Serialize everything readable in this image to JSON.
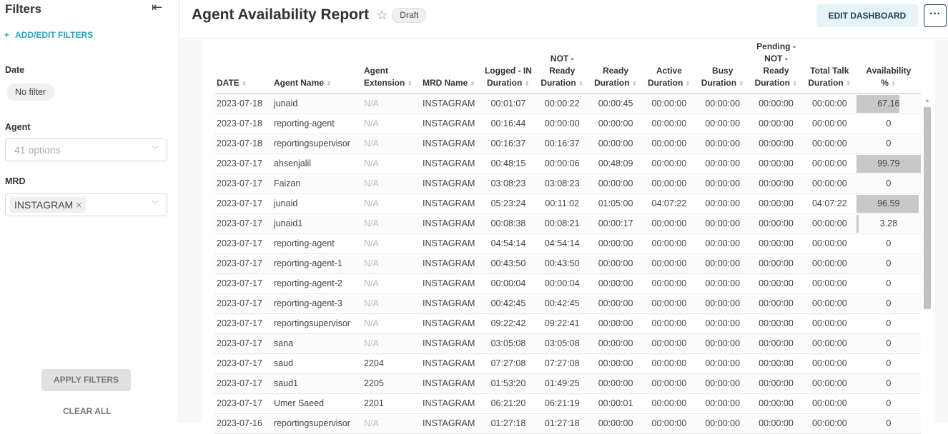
{
  "sidebar": {
    "title": "Filters",
    "add_filters": "ADD/EDIT FILTERS",
    "date_label": "Date",
    "date_value": "No filter",
    "agent_label": "Agent",
    "agent_placeholder": "41 options",
    "mrd_label": "MRD",
    "mrd_value": "INSTAGRAM",
    "apply": "APPLY FILTERS",
    "clear": "CLEAR ALL"
  },
  "header": {
    "title": "Agent Availability Report",
    "status": "Draft",
    "edit": "EDIT DASHBOARD",
    "more": "···"
  },
  "table": {
    "columns": [
      "DATE",
      "Agent Name",
      "Agent Extension",
      "MRD Name",
      "Logged - IN Duration",
      "NOT - Ready Duration",
      "Ready Duration",
      "Active Duration",
      "Busy Duration",
      "Pending - NOT - Ready Duration",
      "Total Talk Duration",
      "Availability %"
    ],
    "rows": [
      [
        "2023-07-18",
        "junaid",
        "N/A",
        "INSTAGRAM",
        "00:01:07",
        "00:00:22",
        "00:00:45",
        "00:00:00",
        "00:00:00",
        "00:00:00",
        "00:00:00",
        "67.16"
      ],
      [
        "2023-07-18",
        "reporting-agent",
        "N/A",
        "INSTAGRAM",
        "00:16:44",
        "00:00:00",
        "00:00:00",
        "00:00:00",
        "00:00:00",
        "00:00:00",
        "00:00:00",
        "0"
      ],
      [
        "2023-07-18",
        "reportingsupervisor",
        "N/A",
        "INSTAGRAM",
        "00:16:37",
        "00:16:37",
        "00:00:00",
        "00:00:00",
        "00:00:00",
        "00:00:00",
        "00:00:00",
        "0"
      ],
      [
        "2023-07-17",
        "ahsenjalil",
        "N/A",
        "INSTAGRAM",
        "00:48:15",
        "00:00:06",
        "00:48:09",
        "00:00:00",
        "00:00:00",
        "00:00:00",
        "00:00:00",
        "99.79"
      ],
      [
        "2023-07-17",
        "Faizan",
        "N/A",
        "INSTAGRAM",
        "03:08:23",
        "03:08:23",
        "00:00:00",
        "00:00:00",
        "00:00:00",
        "00:00:00",
        "00:00:00",
        "0"
      ],
      [
        "2023-07-17",
        "junaid",
        "N/A",
        "INSTAGRAM",
        "05:23:24",
        "00:11:02",
        "01:05:00",
        "04:07:22",
        "00:00:00",
        "00:00:00",
        "04:07:22",
        "96.59"
      ],
      [
        "2023-07-17",
        "junaid1",
        "N/A",
        "INSTAGRAM",
        "00:08:38",
        "00:08:21",
        "00:00:17",
        "00:00:00",
        "00:00:00",
        "00:00:00",
        "00:00:00",
        "3.28"
      ],
      [
        "2023-07-17",
        "reporting-agent",
        "N/A",
        "INSTAGRAM",
        "04:54:14",
        "04:54:14",
        "00:00:00",
        "00:00:00",
        "00:00:00",
        "00:00:00",
        "00:00:00",
        "0"
      ],
      [
        "2023-07-17",
        "reporting-agent-1",
        "N/A",
        "INSTAGRAM",
        "00:43:50",
        "00:43:50",
        "00:00:00",
        "00:00:00",
        "00:00:00",
        "00:00:00",
        "00:00:00",
        "0"
      ],
      [
        "2023-07-17",
        "reporting-agent-2",
        "N/A",
        "INSTAGRAM",
        "00:00:04",
        "00:00:04",
        "00:00:00",
        "00:00:00",
        "00:00:00",
        "00:00:00",
        "00:00:00",
        "0"
      ],
      [
        "2023-07-17",
        "reporting-agent-3",
        "N/A",
        "INSTAGRAM",
        "00:42:45",
        "00:42:45",
        "00:00:00",
        "00:00:00",
        "00:00:00",
        "00:00:00",
        "00:00:00",
        "0"
      ],
      [
        "2023-07-17",
        "reportingsupervisor",
        "N/A",
        "INSTAGRAM",
        "09:22:42",
        "09:22:41",
        "00:00:00",
        "00:00:00",
        "00:00:00",
        "00:00:00",
        "00:00:00",
        "0"
      ],
      [
        "2023-07-17",
        "sana",
        "N/A",
        "INSTAGRAM",
        "03:05:08",
        "03:05:08",
        "00:00:00",
        "00:00:00",
        "00:00:00",
        "00:00:00",
        "00:00:00",
        "0"
      ],
      [
        "2023-07-17",
        "saud",
        "2204",
        "INSTAGRAM",
        "07:27:08",
        "07:27:08",
        "00:00:00",
        "00:00:00",
        "00:00:00",
        "00:00:00",
        "00:00:00",
        "0"
      ],
      [
        "2023-07-17",
        "saud1",
        "2205",
        "INSTAGRAM",
        "01:53:20",
        "01:49:25",
        "00:00:00",
        "00:00:00",
        "00:00:00",
        "00:00:00",
        "00:00:00",
        "0"
      ],
      [
        "2023-07-17",
        "Umer Saeed",
        "2201",
        "INSTAGRAM",
        "06:21:20",
        "06:21:19",
        "00:00:01",
        "00:00:00",
        "00:00:00",
        "00:00:00",
        "00:00:00",
        "0"
      ],
      [
        "2023-07-16",
        "reportingsupervisor",
        "N/A",
        "INSTAGRAM",
        "01:27:18",
        "01:27:18",
        "00:00:00",
        "00:00:00",
        "00:00:00",
        "00:00:00",
        "00:00:00",
        "0"
      ]
    ]
  },
  "colors": {
    "accent": "#20a7c9",
    "bar": "#c8c8c8",
    "primary": "#1f3f55"
  }
}
